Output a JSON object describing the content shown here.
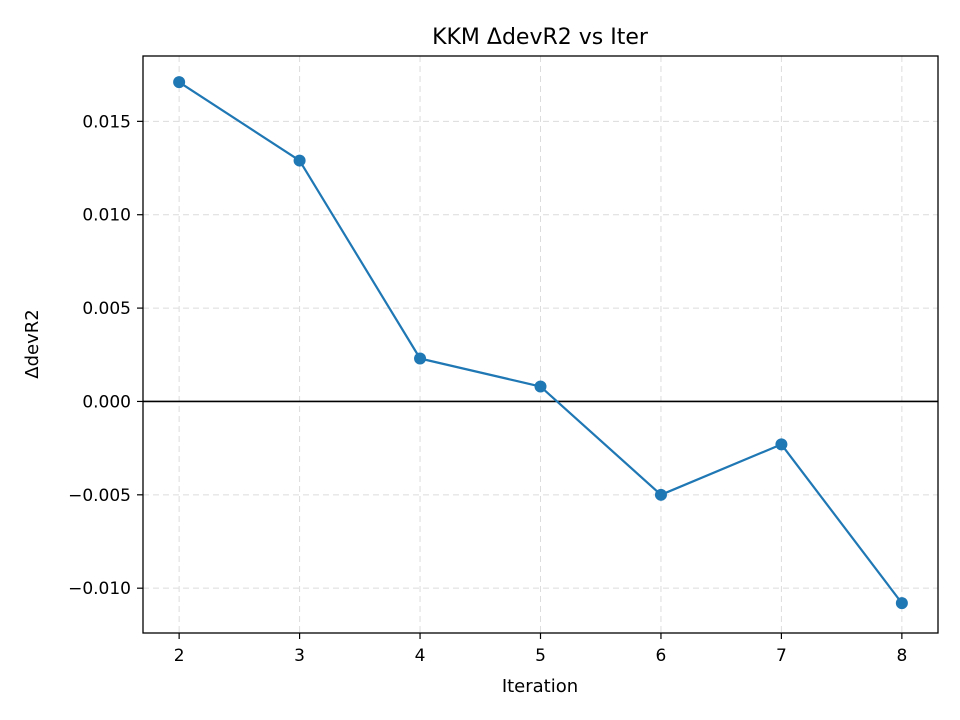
{
  "chart_data": {
    "type": "line",
    "title": "KKM ΔdevR2 vs Iter",
    "xlabel": "Iteration",
    "ylabel": "ΔdevR2",
    "x": [
      2,
      3,
      4,
      5,
      6,
      7,
      8
    ],
    "xlim": [
      1.7,
      8.3
    ],
    "ylim": [
      -0.0124,
      0.0185
    ],
    "x_ticks": [
      2,
      3,
      4,
      5,
      6,
      7,
      8
    ],
    "x_tick_labels": [
      "2",
      "3",
      "4",
      "5",
      "6",
      "7",
      "8"
    ],
    "y_ticks": [
      -0.01,
      -0.005,
      0.0,
      0.005,
      0.01,
      0.015
    ],
    "y_tick_labels": [
      "−0.010",
      "−0.005",
      "0.000",
      "0.005",
      "0.010",
      "0.015"
    ],
    "series": [
      {
        "values": [
          0.0171,
          0.0129,
          0.0023,
          0.0008,
          -0.005,
          -0.0023,
          -0.0108
        ],
        "color": "#1f77b4",
        "marker": "circle"
      }
    ],
    "reference_line": {
      "y": 0,
      "color": "#000000"
    },
    "grid": true,
    "grid_style": "dashed",
    "legend": false
  }
}
